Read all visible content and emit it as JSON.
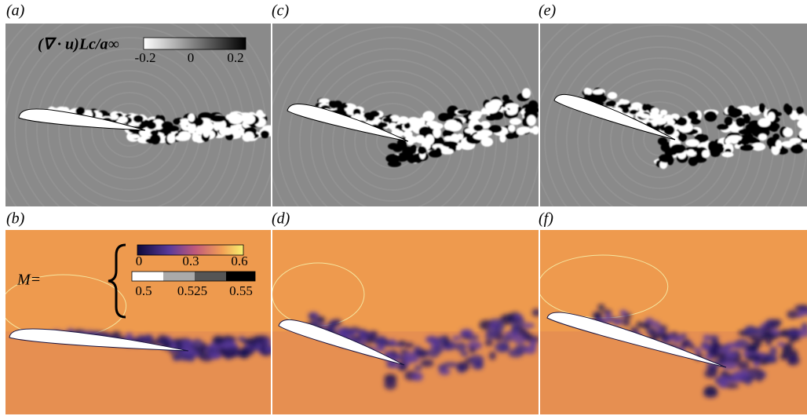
{
  "panels": [
    {
      "label": "(a)"
    },
    {
      "label": "(c)"
    },
    {
      "label": "(e)"
    },
    {
      "label": "(b)"
    },
    {
      "label": "(d)"
    },
    {
      "label": "(f)"
    }
  ],
  "dilatation_colorbar": {
    "title": "(∇ · u)Lc/a∞",
    "ticks": [
      "-0.2",
      "0",
      "0.2"
    ]
  },
  "mach_colorbar": {
    "prefix": "M=",
    "continuous_ticks": [
      "0",
      "0.3",
      "0.6"
    ],
    "discrete_ticks": [
      "0.5",
      "0.525",
      "0.55"
    ]
  }
}
